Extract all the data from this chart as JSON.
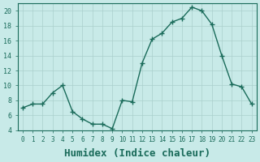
{
  "x": [
    0,
    1,
    2,
    3,
    4,
    5,
    6,
    7,
    8,
    9,
    10,
    11,
    12,
    13,
    14,
    15,
    16,
    17,
    18,
    19,
    20,
    21,
    22,
    23
  ],
  "y": [
    7,
    7.5,
    7.5,
    9,
    10,
    6.5,
    5.5,
    4.8,
    4.8,
    4.2,
    8,
    7.8,
    13,
    16.2,
    17,
    18.5,
    19,
    20.5,
    20,
    18.2,
    14,
    10.2,
    9.8,
    7.5
  ],
  "line_color": "#1a6b5a",
  "marker": "+",
  "marker_color": "#1a6b5a",
  "bg_color": "#c8eae8",
  "grid_color": "#aacfcc",
  "xlabel": "Humidex (Indice chaleur)",
  "xlabel_fontsize": 9,
  "ylabel_ticks": [
    4,
    6,
    8,
    10,
    12,
    14,
    16,
    18,
    20
  ],
  "xlim": [
    -0.5,
    23.5
  ],
  "ylim": [
    4,
    21
  ],
  "tick_color": "#1a6b5a",
  "axis_color": "#1a6b5a"
}
